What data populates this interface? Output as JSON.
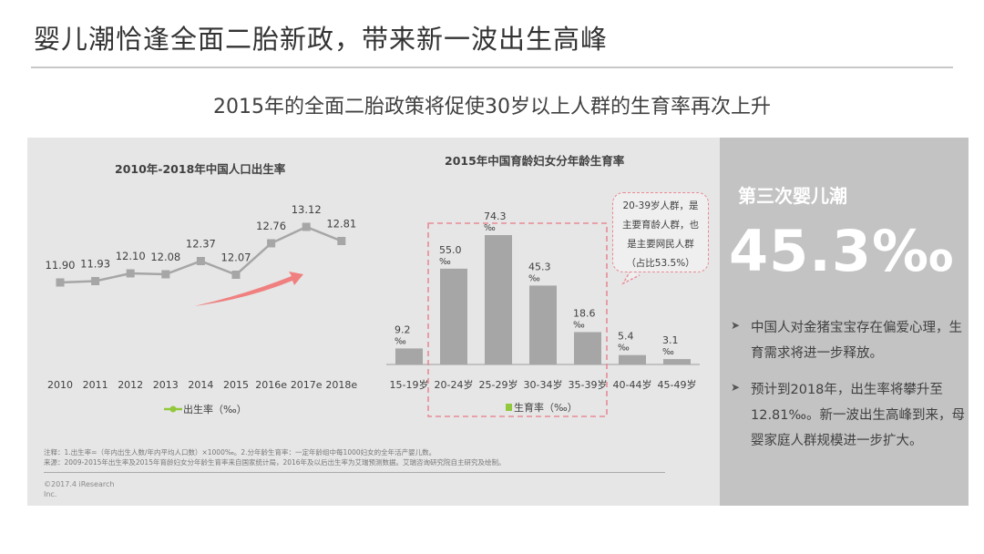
{
  "header": {
    "title": "婴儿潮恰逢全面二胎新政，带来新一波出生高峰",
    "subtitle": "2015年的全面二胎政策将促使30岁以上人群的生育率再次上升"
  },
  "colors": {
    "line": "#a6a6a6",
    "bar": "#a6a6a6",
    "legend_marker": "#92c83e",
    "highlight_dash": "#e88a96",
    "arrow": "#f08080",
    "side_bg": "#c3c3c3",
    "panel_bg": "#e6e6e6"
  },
  "chart_data": [
    {
      "type": "line",
      "title": "2010年-2018年中国人口出生率",
      "categories": [
        "2010",
        "2011",
        "2012",
        "2013",
        "2014",
        "2015",
        "2016e",
        "2017e",
        "2018e"
      ],
      "series": [
        {
          "name": "出生率（‰）",
          "values": [
            11.9,
            11.93,
            12.1,
            12.08,
            12.37,
            12.07,
            12.76,
            13.12,
            12.81
          ]
        }
      ],
      "labels": [
        "11.90",
        "11.93",
        "12.10",
        "12.08",
        "12.37",
        "12.07",
        "12.76",
        "13.12",
        "12.81"
      ],
      "legend": "出生率（‰）",
      "xlabel": "",
      "ylabel": "",
      "grid": false,
      "legend_position": "bottom"
    },
    {
      "type": "bar",
      "title": "2015年中国育龄妇女分年龄生育率",
      "categories": [
        "15-19岁",
        "20-24岁",
        "25-29岁",
        "30-34岁",
        "35-39岁",
        "40-44岁",
        "45-49岁"
      ],
      "series": [
        {
          "name": "生育率（‰）",
          "values": [
            9.2,
            55.0,
            74.3,
            45.3,
            18.6,
            5.4,
            3.1
          ]
        }
      ],
      "labels": [
        "9.2",
        "55.0",
        "74.3",
        "45.3",
        "18.6",
        "5.4",
        "3.1"
      ],
      "unit": "‰",
      "legend": "生育率（‰）",
      "annotation": {
        "lines": [
          "20-39岁人群，是",
          "主要育龄人群，也",
          "是主要网民人群",
          "（占比53.5%）"
        ]
      },
      "xlabel": "",
      "ylabel": "",
      "grid": false,
      "legend_position": "bottom"
    }
  ],
  "side": {
    "title": "第三次婴儿潮",
    "value": "45.3‰",
    "bullets": [
      {
        "icon": "arrow-bullet-icon",
        "text": "中国人对金猪宝宝存在偏爱心理，生育需求将进一步释放。"
      },
      {
        "icon": "arrow-bullet-icon",
        "text": "预计到2018年，出生率将攀升至12.81‰。新一波出生高峰到来，母婴家庭人群规模进一步扩大。"
      }
    ]
  },
  "footer": {
    "note": "注释：1.出生率=（年内出生人数/年内平均人口数）×1000‰。2.分年龄生育率：一定年龄组中每1000妇女的全年活产婴儿数。",
    "source": "来源：2009-2015年出生率及2015年育龄妇女分年龄生育率来自国家统计局，2016年及以后出生率为艾瑞预测数据。艾瑞咨询研究院自主研究及绘制。",
    "copyright": "©2017.4 iResearch Inc."
  }
}
